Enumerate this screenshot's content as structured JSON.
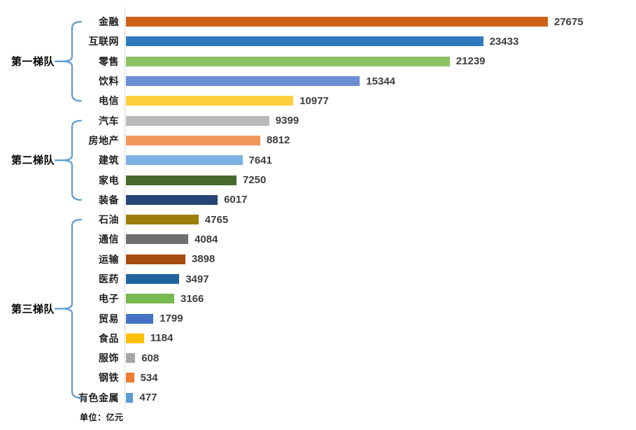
{
  "unit_note": "单位：亿元",
  "decor": {
    "brace_color": "#5B9BD5",
    "axis_color": "#DBDBDB"
  },
  "chart_data": {
    "type": "bar",
    "orientation": "horizontal",
    "title": "",
    "unit_label": "单位：亿元",
    "xlim": [
      0,
      27675
    ],
    "grid": false,
    "value_labels_shown": true,
    "categories": [
      "金融",
      "互联网",
      "零售",
      "饮料",
      "电信",
      "汽车",
      "房地产",
      "建筑",
      "家电",
      "装备",
      "石油",
      "通信",
      "运输",
      "医药",
      "电子",
      "贸易",
      "食品",
      "服饰",
      "钢铁",
      "有色金属"
    ],
    "values": [
      27675,
      23433,
      21239,
      15344,
      10977,
      9399,
      8812,
      7641,
      7250,
      6017,
      4765,
      4084,
      3898,
      3497,
      3166,
      1799,
      1184,
      608,
      534,
      477
    ],
    "bar_colors": [
      "#CE6117",
      "#3179BF",
      "#8CC162",
      "#6B8ED4",
      "#FCCE3C",
      "#B9B9B9",
      "#F2975B",
      "#7CAFE2",
      "#46692D",
      "#264478",
      "#9E7D0A",
      "#6F6F6F",
      "#A64A10",
      "#20639F",
      "#7AB850",
      "#4472C4",
      "#FFC003",
      "#A8A8A8",
      "#ED7D31",
      "#5B9BD5"
    ],
    "tier_brackets": [
      {
        "label": "第一梯队",
        "from": 0,
        "to": 4
      },
      {
        "label": "第二梯队",
        "from": 5,
        "to": 9
      },
      {
        "label": "第三梯队",
        "from": 10,
        "to": 19
      }
    ]
  }
}
